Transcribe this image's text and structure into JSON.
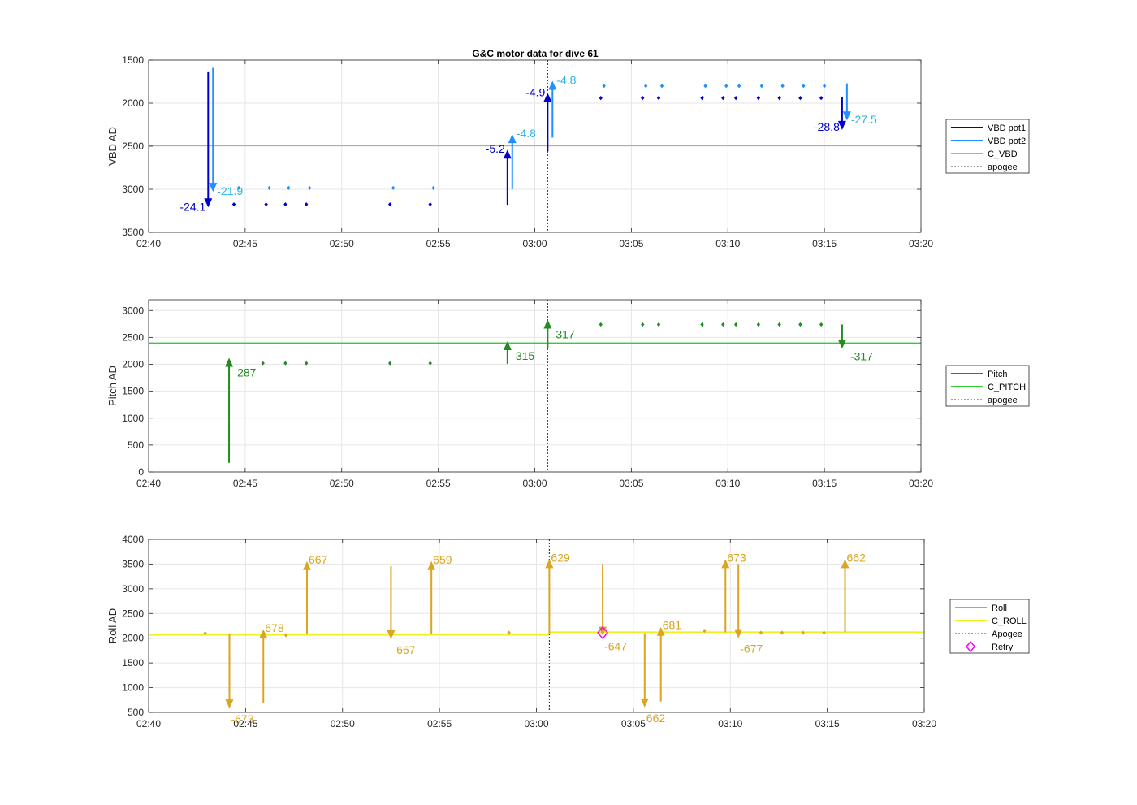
{
  "title": "G&C motor data for dive 61",
  "colors": {
    "vbd_pot1": "#0000CD",
    "vbd_pot2": "#1E90FF",
    "c_vbd": "#40E0D0",
    "vbd_label1": "#0000CD",
    "vbd_label2": "#29B6E8",
    "pitch": "#228B22",
    "c_pitch": "#32CD32",
    "roll": "#DAA520",
    "c_roll": "#F0F020",
    "retry": "#FF00FF",
    "apogee": "#404040",
    "grid": "#e6e6e6",
    "axis": "#262626"
  },
  "chart_data": [
    {
      "type": "line",
      "id": "vbd",
      "ylabel": "VBD AD",
      "xlim": [
        "02:40",
        "03:20"
      ],
      "ylim": [
        1500,
        3500
      ],
      "y_reversed": true,
      "x_ticks": [
        "02:40",
        "02:45",
        "02:50",
        "02:55",
        "03:00",
        "03:05",
        "03:10",
        "03:15",
        "03:20"
      ],
      "y_ticks": [
        1500,
        2000,
        2500,
        3000,
        3500
      ],
      "apogee_time": "03:00:40",
      "legend": [
        "VBD pot1",
        "VBD pot2",
        "C_VBD",
        "apogee"
      ],
      "legend_placement": "right",
      "reference_lines": [
        {
          "name": "C_VBD",
          "y": 2490
        }
      ],
      "moves": [
        {
          "series": "VBD pot1",
          "x": "02:43:05",
          "y0": 1640,
          "y1": 3210,
          "label": "-24.1"
        },
        {
          "series": "VBD pot2",
          "x": "02:43:20",
          "y0": 1590,
          "y1": 3030,
          "label": "-21.9"
        },
        {
          "series": "VBD pot1",
          "x": "02:58:35",
          "y0": 3180,
          "y1": 2540,
          "label": "-5.2"
        },
        {
          "series": "VBD pot2",
          "x": "02:58:50",
          "y0": 3000,
          "y1": 2360,
          "label": "-4.8"
        },
        {
          "series": "VBD pot1",
          "x": "03:00:40",
          "y0": 2560,
          "y1": 1880,
          "label": "-4.9"
        },
        {
          "series": "VBD pot2",
          "x": "03:00:55",
          "y0": 2400,
          "y1": 1740,
          "label": "-4.8"
        },
        {
          "series": "VBD pot1",
          "x": "03:15:55",
          "y0": 1930,
          "y1": 2310,
          "label": "-28.8"
        },
        {
          "series": "VBD pot2",
          "x": "03:16:10",
          "y0": 1770,
          "y1": 2200,
          "label": "-27.5"
        }
      ],
      "points": [
        {
          "series": "VBD pot1",
          "x": [
            "02:44:25",
            "02:46:05",
            "02:47:05",
            "02:48:10",
            "02:52:30",
            "02:54:35",
            "03:03:25",
            "03:05:35",
            "03:06:25",
            "03:08:40",
            "03:09:45",
            "03:10:25",
            "03:11:35",
            "03:12:40",
            "03:13:45",
            "03:14:50"
          ],
          "y": [
            3175,
            3175,
            3175,
            3175,
            3175,
            3175,
            1940,
            1940,
            1940,
            1940,
            1940,
            1940,
            1940,
            1940,
            1940,
            1940
          ]
        },
        {
          "series": "VBD pot2",
          "x": [
            "02:44:40",
            "02:46:15",
            "02:47:15",
            "02:48:20",
            "02:52:40",
            "02:54:45",
            "03:03:35",
            "03:05:45",
            "03:06:35",
            "03:08:50",
            "03:09:55",
            "03:10:35",
            "03:11:45",
            "03:12:50",
            "03:13:55",
            "03:15:00"
          ],
          "y": [
            2985,
            2985,
            2985,
            2985,
            2985,
            2985,
            1800,
            1800,
            1800,
            1800,
            1800,
            1800,
            1800,
            1800,
            1800,
            1800
          ]
        }
      ]
    },
    {
      "type": "line",
      "id": "pitch",
      "ylabel": "Pitch AD",
      "xlim": [
        "02:40",
        "03:20"
      ],
      "ylim": [
        0,
        3200
      ],
      "x_ticks": [
        "02:40",
        "02:45",
        "02:50",
        "02:55",
        "03:00",
        "03:05",
        "03:10",
        "03:15",
        "03:20"
      ],
      "y_ticks": [
        0,
        500,
        1000,
        1500,
        2000,
        2500,
        3000
      ],
      "apogee_time": "03:00:40",
      "legend": [
        "Pitch",
        "C_PITCH",
        "apogee"
      ],
      "legend_placement": "right",
      "reference_lines": [
        {
          "name": "C_PITCH",
          "y": 2390
        }
      ],
      "moves": [
        {
          "series": "Pitch",
          "x": "02:44:10",
          "y0": 170,
          "y1": 2120,
          "label": "287"
        },
        {
          "series": "Pitch",
          "x": "02:58:35",
          "y0": 2010,
          "y1": 2430,
          "label": "315"
        },
        {
          "series": "Pitch",
          "x": "03:00:40",
          "y0": 2290,
          "y1": 2830,
          "label": "317"
        },
        {
          "series": "Pitch",
          "x": "03:15:55",
          "y0": 2740,
          "y1": 2290,
          "label": "-317"
        }
      ],
      "points": [
        {
          "series": "Pitch",
          "x": [
            "02:45:55",
            "02:47:05",
            "02:48:10",
            "02:52:30",
            "02:54:35",
            "03:03:25",
            "03:05:35",
            "03:06:25",
            "03:08:40",
            "03:09:45",
            "03:10:25",
            "03:11:35",
            "03:12:40",
            "03:13:45",
            "03:14:50"
          ],
          "y": [
            2020,
            2020,
            2020,
            2020,
            2020,
            2740,
            2740,
            2740,
            2740,
            2740,
            2740,
            2740,
            2740,
            2740,
            2740
          ]
        }
      ]
    },
    {
      "type": "line",
      "id": "roll",
      "ylabel": "Roll AD",
      "xlim": [
        "02:40",
        "03:20"
      ],
      "ylim": [
        500,
        4000
      ],
      "x_ticks": [
        "02:40",
        "02:45",
        "02:50",
        "02:55",
        "03:00",
        "03:05",
        "03:10",
        "03:15",
        "03:20"
      ],
      "y_ticks": [
        500,
        1000,
        1500,
        2000,
        2500,
        3000,
        3500,
        4000
      ],
      "apogee_time": "03:00:40",
      "legend": [
        "Roll",
        "C_ROLL",
        "Apogee",
        "Retry"
      ],
      "legend_placement": "right",
      "reference_lines": [
        {
          "name": "C_ROLL",
          "x_split": "03:00:40",
          "y_before": 2070,
          "y_after": 2120
        }
      ],
      "moves": [
        {
          "series": "Roll",
          "x": "02:44:10",
          "y0": 2080,
          "y1": 580,
          "label": "-673"
        },
        {
          "series": "Roll",
          "x": "02:45:55",
          "y0": 680,
          "y1": 2180,
          "label": "678"
        },
        {
          "series": "Roll",
          "x": "02:48:10",
          "y0": 2080,
          "y1": 3560,
          "label": "667"
        },
        {
          "series": "Roll",
          "x": "02:52:30",
          "y0": 3460,
          "y1": 1980,
          "label": "-667"
        },
        {
          "series": "Roll",
          "x": "02:54:35",
          "y0": 2080,
          "y1": 3560,
          "label": "659"
        },
        {
          "series": "Roll",
          "x": "03:00:40",
          "y0": 2080,
          "y1": 3600,
          "label": "629"
        },
        {
          "series": "Roll",
          "x": "03:03:25",
          "y0": 3500,
          "y1": 2050,
          "label": "-647"
        },
        {
          "series": "Roll",
          "x": "03:05:35",
          "y0": 2100,
          "y1": 600,
          "label": "662"
        },
        {
          "series": "Roll",
          "x": "03:06:25",
          "y0": 720,
          "y1": 2230,
          "label": "681"
        },
        {
          "series": "Roll",
          "x": "03:09:45",
          "y0": 2120,
          "y1": 3600,
          "label": "673"
        },
        {
          "series": "Roll",
          "x": "03:10:25",
          "y0": 3500,
          "y1": 2000,
          "label": "-677"
        },
        {
          "series": "Roll",
          "x": "03:15:55",
          "y0": 2120,
          "y1": 3600,
          "label": "662"
        }
      ],
      "points": [
        {
          "series": "Roll",
          "x": [
            "02:42:55",
            "02:47:05",
            "02:58:35",
            "03:08:40",
            "03:11:35",
            "03:12:40",
            "03:13:45",
            "03:14:50"
          ],
          "y": [
            2100,
            2060,
            2110,
            2150,
            2110,
            2110,
            2110,
            2110
          ]
        }
      ],
      "retry_points": [
        {
          "x": "03:03:25",
          "y": 2110
        }
      ]
    }
  ]
}
